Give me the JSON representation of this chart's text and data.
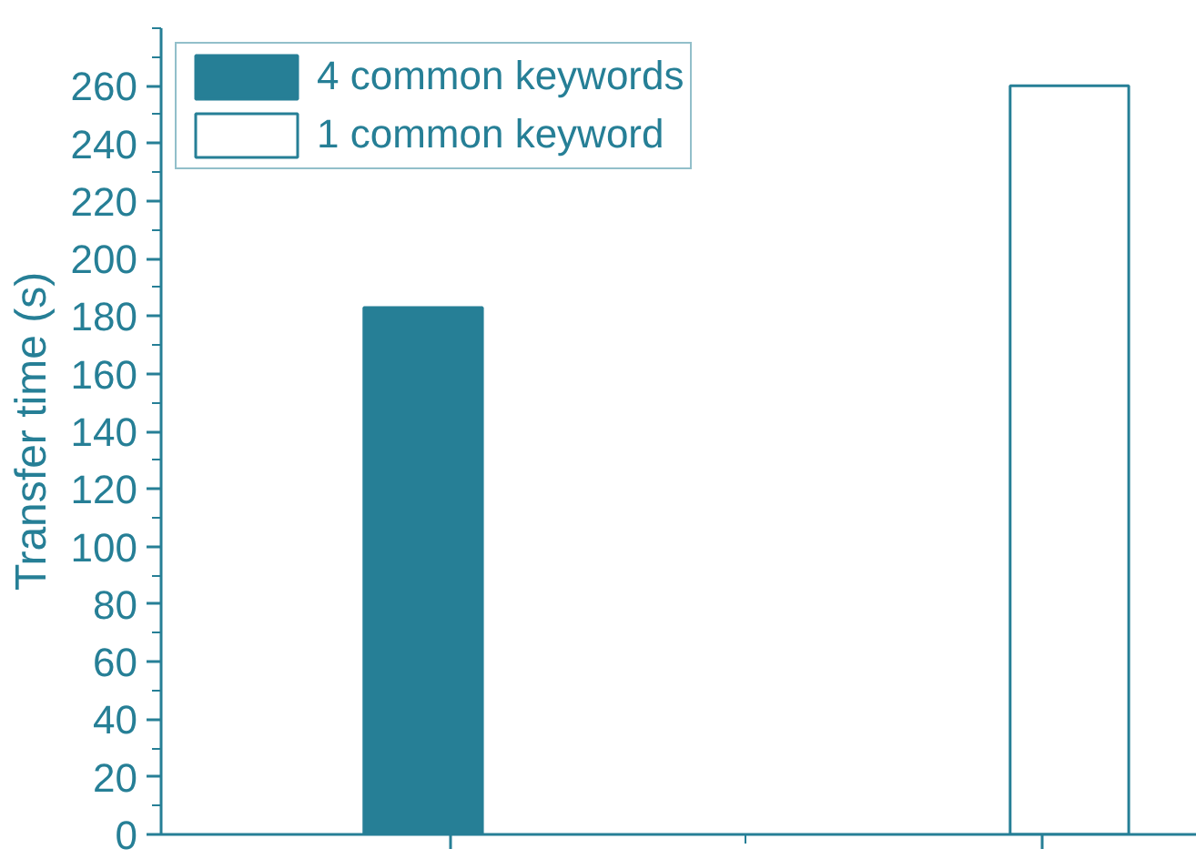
{
  "chart_data": {
    "type": "bar",
    "ylabel": "Transfer time (s)",
    "categories": [
      null,
      null
    ],
    "series": [
      {
        "name": "4 common keywords",
        "color": "#267f96",
        "values": [
          183,
          null
        ]
      },
      {
        "name": "1 common keyword",
        "color": "#ffffff",
        "values": [
          null,
          260
        ]
      }
    ],
    "ylim": [
      0,
      280
    ],
    "yticks": [
      0,
      20,
      40,
      60,
      80,
      100,
      120,
      140,
      160,
      180,
      200,
      220,
      240,
      260
    ],
    "grid": false,
    "legend": "top left"
  }
}
